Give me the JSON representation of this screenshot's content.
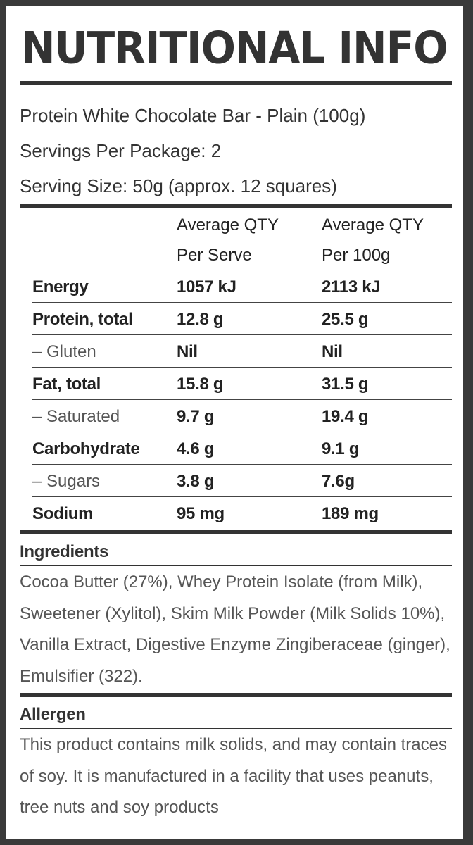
{
  "title": "NUTRITIONAL INFO",
  "product": {
    "name": "Protein White Chocolate Bar - Plain (100g)",
    "servings_per_package": "Servings Per Package: 2",
    "serving_size": "Serving Size: 50g (approx. 12 squares)"
  },
  "table": {
    "headers": {
      "per_serve_line1": "Average QTY",
      "per_serve_line2": "Per Serve",
      "per_100g_line1": "Average QTY",
      "per_100g_line2": "Per 100g"
    },
    "rows": [
      {
        "name": "Energy",
        "per_serve": "1057 kJ",
        "per_100g": "2113 kJ"
      },
      {
        "name": "Protein, total",
        "per_serve": "12.8 g",
        "per_100g": "25.5 g"
      },
      {
        "name": "– Gluten",
        "per_serve": "Nil",
        "per_100g": "Nil"
      },
      {
        "name": "Fat, total",
        "per_serve": "15.8 g",
        "per_100g": "31.5 g"
      },
      {
        "name": "– Saturated",
        "per_serve": "9.7 g",
        "per_100g": "19.4 g"
      },
      {
        "name": "Carbohydrate",
        "per_serve": "4.6 g",
        "per_100g": "9.1 g"
      },
      {
        "name": "– Sugars",
        "per_serve": "3.8 g",
        "per_100g": "7.6g"
      },
      {
        "name": "Sodium",
        "per_serve": "95 mg",
        "per_100g": "189 mg"
      }
    ]
  },
  "ingredients": {
    "heading": "Ingredients",
    "text": "Cocoa Butter (27%), Whey Protein Isolate (from Milk), Sweetener (Xylitol), Skim Milk Powder (Milk Solids 10%), Vanilla Extract, Digestive Enzyme Zingiberaceae (ginger), Emulsifier (322)."
  },
  "allergen": {
    "heading": "Allergen",
    "text": "This product contains milk solids, and may contain traces of soy. It is manufactured in a facility that uses peanuts, tree nuts and soy products"
  }
}
